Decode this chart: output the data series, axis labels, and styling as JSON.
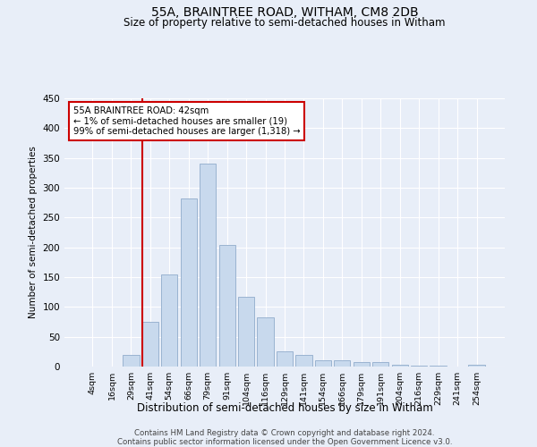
{
  "title": "55A, BRAINTREE ROAD, WITHAM, CM8 2DB",
  "subtitle": "Size of property relative to semi-detached houses in Witham",
  "xlabel": "Distribution of semi-detached houses by size in Witham",
  "ylabel": "Number of semi-detached properties",
  "bar_labels": [
    "4sqm",
    "16sqm",
    "29sqm",
    "41sqm",
    "54sqm",
    "66sqm",
    "79sqm",
    "91sqm",
    "104sqm",
    "116sqm",
    "129sqm",
    "141sqm",
    "154sqm",
    "166sqm",
    "179sqm",
    "191sqm",
    "204sqm",
    "216sqm",
    "229sqm",
    "241sqm",
    "254sqm"
  ],
  "bar_values": [
    0,
    0,
    20,
    75,
    155,
    282,
    340,
    204,
    117,
    83,
    25,
    20,
    11,
    11,
    7,
    7,
    3,
    2,
    1,
    0,
    3
  ],
  "bar_color": "#c8d9ed",
  "bar_edge_color": "#9ab3d0",
  "property_line_bin": 3,
  "annotation_line1": "55A BRAINTREE ROAD: 42sqm",
  "annotation_line2": "← 1% of semi-detached houses are smaller (19)",
  "annotation_line3": "99% of semi-detached houses are larger (1,318) →",
  "annotation_box_color": "#ffffff",
  "annotation_box_edge_color": "#cc0000",
  "line_color": "#cc0000",
  "ylim": [
    0,
    450
  ],
  "yticks": [
    0,
    50,
    100,
    150,
    200,
    250,
    300,
    350,
    400,
    450
  ],
  "footer_line1": "Contains HM Land Registry data © Crown copyright and database right 2024.",
  "footer_line2": "Contains public sector information licensed under the Open Government Licence v3.0.",
  "bg_color": "#e8eef8",
  "plot_bg_color": "#e8eef8"
}
